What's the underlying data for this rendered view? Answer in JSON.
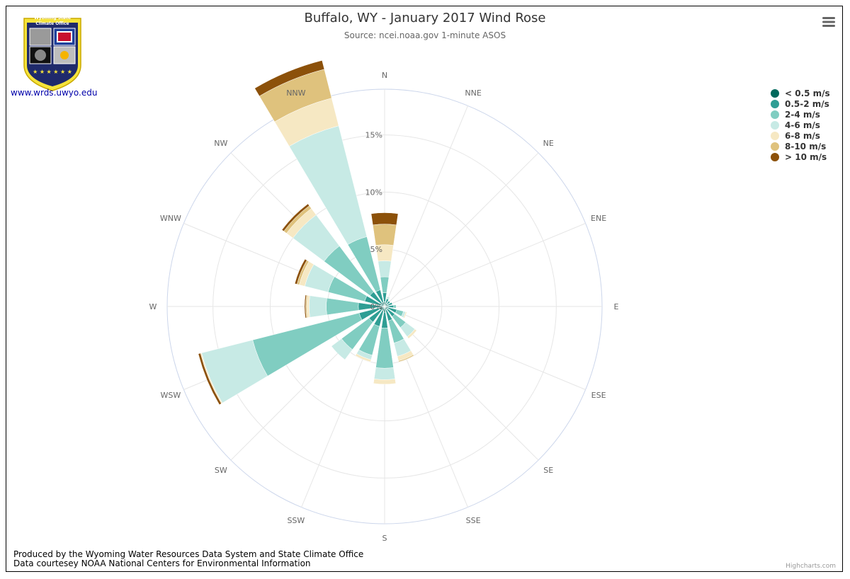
{
  "header": {
    "title": "Buffalo, WY - January 2017 Wind Rose",
    "subtitle": "Source: ncei.noaa.gov 1-minute ASOS"
  },
  "logo": {
    "line1": "Wyoming State",
    "line2": "Climate Office",
    "link_text": "www.wrds.uwyo.edu"
  },
  "footer": {
    "line1": "Produced by the Wyoming Water Resources Data System and State Climate Office",
    "line2": "Data courtesey NOAA National Centers for Environmental Information",
    "brand": "Highcharts.com"
  },
  "icons": {
    "menu": "hamburger-menu-icon"
  },
  "chart_data": {
    "type": "windrose",
    "stacked": true,
    "directions": [
      "N",
      "NNE",
      "NE",
      "ENE",
      "E",
      "ESE",
      "SE",
      "SSE",
      "S",
      "SSW",
      "SW",
      "WSW",
      "W",
      "WNW",
      "NW",
      "NNW"
    ],
    "radial_ticks": [
      "0%",
      "5%",
      "10%",
      "15%"
    ],
    "radial_max": 19,
    "grid": true,
    "legend_placement": "top-right",
    "series": [
      {
        "name": "< 0.5 m/s",
        "color": "#00695c",
        "values": [
          0.4,
          0.3,
          0.3,
          0.3,
          0.3,
          0.3,
          0.3,
          0.3,
          0.5,
          0.4,
          0.4,
          0.5,
          0.3,
          0.3,
          0.4,
          0.4
        ]
      },
      {
        "name": "0.5-2 m/s",
        "color": "#2f9e94",
        "values": [
          0.8,
          0.4,
          0.3,
          0.4,
          0.5,
          0.8,
          0.8,
          1.0,
          1.4,
          1.4,
          1.3,
          1.8,
          2.0,
          1.5,
          1.2,
          1.1
        ]
      },
      {
        "name": "2-4 m/s",
        "color": "#80cdc1",
        "values": [
          1.4,
          0.0,
          0.0,
          0.0,
          0.2,
          0.6,
          1.2,
          2.0,
          3.5,
          2.6,
          3.0,
          9.6,
          2.8,
          3.3,
          5.0,
          4.8
        ]
      },
      {
        "name": "4-6 m/s",
        "color": "#c7eae5",
        "values": [
          1.4,
          0.2,
          0.0,
          0.0,
          0.0,
          0.2,
          1.0,
          1.2,
          1.0,
          0.4,
          1.1,
          4.6,
          1.5,
          2.1,
          3.4,
          10.0
        ]
      },
      {
        "name": "6-8 m/s",
        "color": "#f6e8c3",
        "values": [
          1.4,
          0.0,
          0.0,
          0.0,
          0.0,
          0.1,
          0.2,
          0.4,
          0.4,
          0.2,
          0.0,
          0.1,
          0.2,
          0.5,
          0.7,
          2.5
        ]
      },
      {
        "name": "8-10 m/s",
        "color": "#dfc27d",
        "values": [
          1.8,
          0.0,
          0.0,
          0.0,
          0.0,
          0.0,
          0.0,
          0.1,
          0.0,
          0.0,
          0.0,
          0.0,
          0.1,
          0.2,
          0.3,
          2.6
        ]
      },
      {
        "name": "> 10 m/s",
        "color": "#8c510a",
        "values": [
          1.0,
          0.0,
          0.0,
          0.0,
          0.0,
          0.0,
          0.0,
          0.0,
          0.0,
          0.0,
          0.0,
          0.2,
          0.1,
          0.2,
          0.2,
          0.8
        ]
      }
    ]
  }
}
